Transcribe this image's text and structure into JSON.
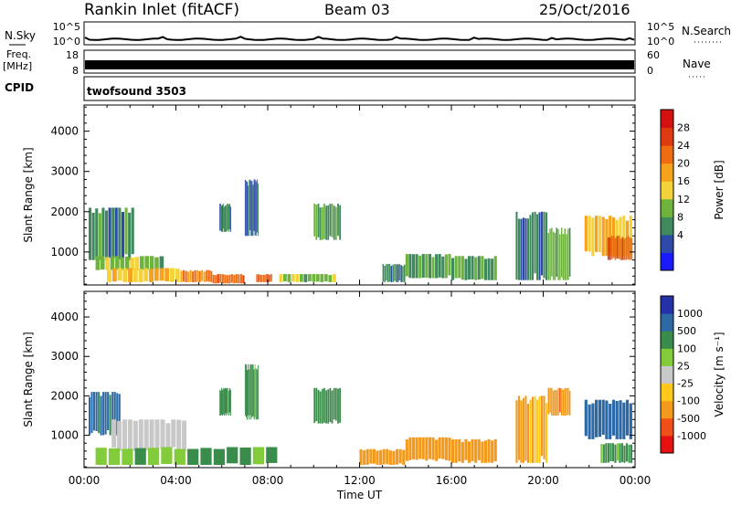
{
  "header": {
    "station": "Rankin Inlet (fitACF)",
    "beam": "Beam 03",
    "date": "25/Oct/2016"
  },
  "nsky": {
    "label": "N.Sky",
    "ticks": [
      "10^5",
      "10^0"
    ],
    "right_label": "N.Search",
    "right_ticks": [
      "10^5",
      "10^0"
    ]
  },
  "freq": {
    "label_line1": "Freq.",
    "label_line2": "[MHz]",
    "ticks": [
      "18",
      "8"
    ],
    "right_label": "Nave",
    "right_ticks": [
      "60",
      "0"
    ]
  },
  "cpid": {
    "label": "CPID",
    "value": "twofsound 3503"
  },
  "colors": {
    "power": [
      "#1a1aff",
      "#2c4aa6",
      "#3e8a5c",
      "#6db33c",
      "#f3d23a",
      "#f6a21c",
      "#f06c12",
      "#e03b10",
      "#d41010"
    ],
    "velocity": [
      "#e61010",
      "#f05018",
      "#f39a1c",
      "#ffc81a",
      "#c8c8c8",
      "#82cc3c",
      "#3a8c4a",
      "#2d6aa5",
      "#2431a8"
    ]
  },
  "chart_data": [
    {
      "type": "heatmap",
      "panel": "power",
      "title": "",
      "xlabel": "Time UT",
      "ylabel": "Slant Range [km]",
      "x_ticks": [
        "00:00",
        "04:00",
        "08:00",
        "12:00",
        "16:00",
        "20:00",
        "00:00"
      ],
      "xlim_hours": [
        0,
        24
      ],
      "y_ticks": [
        1000,
        2000,
        3000,
        4000
      ],
      "ylim_km": [
        180,
        4650
      ],
      "colorbar_label": "Power [dB]",
      "colorbar_ticks": [
        "28",
        "24",
        "20",
        "16",
        "12",
        "8",
        "4"
      ],
      "colorbar_range": [
        0,
        32
      ],
      "regions": [
        {
          "t0": 0.2,
          "t1": 2.2,
          "r0": 800,
          "r1": 2100,
          "value": 10
        },
        {
          "t0": 0.5,
          "t1": 3.5,
          "r0": 550,
          "r1": 900,
          "value": 14
        },
        {
          "t0": 1.0,
          "t1": 4.2,
          "r0": 250,
          "r1": 600,
          "value": 20
        },
        {
          "t0": 4.2,
          "t1": 5.6,
          "r0": 250,
          "r1": 550,
          "value": 24
        },
        {
          "t0": 5.6,
          "t1": 7.0,
          "r0": 220,
          "r1": 450,
          "value": 27
        },
        {
          "t0": 7.5,
          "t1": 8.2,
          "r0": 250,
          "r1": 450,
          "value": 26
        },
        {
          "t0": 8.5,
          "t1": 11.0,
          "r0": 250,
          "r1": 450,
          "value": 14
        },
        {
          "t0": 5.9,
          "t1": 6.4,
          "r0": 1500,
          "r1": 2200,
          "value": 10
        },
        {
          "t0": 7.0,
          "t1": 7.6,
          "r0": 1400,
          "r1": 2800,
          "value": 8
        },
        {
          "t0": 10.0,
          "t1": 11.2,
          "r0": 1300,
          "r1": 2200,
          "value": 11
        },
        {
          "t0": 13.0,
          "t1": 14.0,
          "r0": 250,
          "r1": 700,
          "value": 9
        },
        {
          "t0": 14.0,
          "t1": 16.0,
          "r0": 350,
          "r1": 950,
          "value": 13
        },
        {
          "t0": 16.0,
          "t1": 18.0,
          "r0": 300,
          "r1": 900,
          "value": 12
        },
        {
          "t0": 18.8,
          "t1": 20.2,
          "r0": 300,
          "r1": 2000,
          "value": 9
        },
        {
          "t0": 20.2,
          "t1": 21.2,
          "r0": 300,
          "r1": 1600,
          "value": 14
        },
        {
          "t0": 21.8,
          "t1": 23.9,
          "r0": 900,
          "r1": 1900,
          "value": 20
        },
        {
          "t0": 22.8,
          "t1": 23.9,
          "r0": 800,
          "r1": 1400,
          "value": 27
        }
      ]
    },
    {
      "type": "heatmap",
      "panel": "velocity",
      "title": "",
      "xlabel": "Time UT",
      "ylabel": "Slant Range [km]",
      "x_ticks": [
        "00:00",
        "04:00",
        "08:00",
        "12:00",
        "16:00",
        "20:00",
        "00:00"
      ],
      "xlim_hours": [
        0,
        24
      ],
      "y_ticks": [
        1000,
        2000,
        3000,
        4000
      ],
      "ylim_km": [
        180,
        4650
      ],
      "colorbar_label": "Velocity [m s⁻¹]",
      "colorbar_ticks": [
        "1000",
        "500",
        "100",
        "25",
        "-25",
        "-100",
        "-500",
        "-1000"
      ],
      "regions": [
        {
          "t0": 0.2,
          "t1": 1.6,
          "r0": 1000,
          "r1": 2100,
          "value": 600
        },
        {
          "t0": 1.2,
          "t1": 4.5,
          "r0": 600,
          "r1": 1400,
          "value": 0
        },
        {
          "t0": 0.5,
          "t1": 8.5,
          "r0": 250,
          "r1": 700,
          "value": 120
        },
        {
          "t0": 5.9,
          "t1": 6.4,
          "r0": 1500,
          "r1": 2200,
          "value": 150
        },
        {
          "t0": 7.0,
          "t1": 7.6,
          "r0": 1400,
          "r1": 2800,
          "value": 150
        },
        {
          "t0": 10.0,
          "t1": 11.2,
          "r0": 1300,
          "r1": 2200,
          "value": 200
        },
        {
          "t0": 12.0,
          "t1": 14.0,
          "r0": 250,
          "r1": 650,
          "value": -150
        },
        {
          "t0": 14.0,
          "t1": 16.0,
          "r0": 350,
          "r1": 950,
          "value": -300
        },
        {
          "t0": 16.0,
          "t1": 18.0,
          "r0": 300,
          "r1": 900,
          "value": -200
        },
        {
          "t0": 18.8,
          "t1": 20.2,
          "r0": 300,
          "r1": 2000,
          "value": -120
        },
        {
          "t0": 20.2,
          "t1": 21.2,
          "r0": 1500,
          "r1": 2200,
          "value": -400
        },
        {
          "t0": 21.8,
          "t1": 23.9,
          "r0": 900,
          "r1": 1900,
          "value": 800
        },
        {
          "t0": 22.5,
          "t1": 23.9,
          "r0": 300,
          "r1": 800,
          "value": 150
        }
      ]
    }
  ]
}
